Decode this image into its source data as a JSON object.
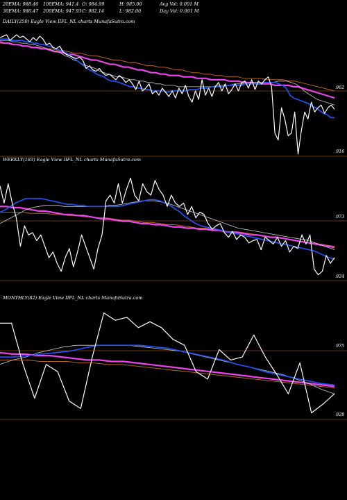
{
  "header": {
    "row1": [
      {
        "key": "ema20",
        "text": "20EMA: 988.46"
      },
      {
        "key": "ema100",
        "text": "100EMA: 941.4"
      },
      {
        "key": "open",
        "text": "O: 984.99"
      },
      {
        "key": "high",
        "text": "H: 985.00"
      },
      {
        "key": "avgvol",
        "text": "Avg Vol: 0.001 M"
      }
    ],
    "row2": [
      {
        "key": "ema30",
        "text": "30EMA: 986.47"
      },
      {
        "key": "ema200",
        "text": "200EMA: 947.93"
      },
      {
        "key": "close",
        "text": "C: 982.14"
      },
      {
        "key": "low",
        "text": "L: 982.00"
      },
      {
        "key": "dayvol",
        "text": "Day Vol: 0.001 M"
      }
    ]
  },
  "colors": {
    "background": "#000000",
    "price": "#ffffff",
    "ema_fast": "#2255ff",
    "ema_slow": "#ee44ee",
    "ema_brown": "#b5651d",
    "ema_white": "#cccccc",
    "guide": "#8b4513"
  },
  "chart_data": [
    {
      "type": "line",
      "title": "DAILY(250) Eagle  View  IIFL_NL  charts MunafaSutra.com",
      "price_labels": [
        "962",
        "916"
      ],
      "ylim": [
        900,
        995
      ],
      "series": [
        {
          "role": "price",
          "values": [
            988,
            989,
            990,
            986,
            988,
            990,
            988,
            989,
            987,
            985,
            988,
            986,
            989,
            987,
            983,
            984,
            981,
            980,
            982,
            978,
            976,
            975,
            974,
            973,
            974,
            972,
            966,
            968,
            965,
            964,
            966,
            963,
            961,
            962,
            960,
            958,
            961,
            959,
            956,
            958,
            955,
            951,
            957,
            950,
            952,
            955,
            948,
            950,
            947,
            952,
            949,
            946,
            950,
            945,
            952,
            948,
            954,
            946,
            942,
            950,
            944,
            958,
            947,
            952,
            946,
            953,
            956,
            950,
            955,
            948,
            951,
            955,
            950,
            956,
            957,
            952,
            958,
            951,
            957,
            955,
            958,
            960,
            953,
            920,
            915,
            938,
            930,
            918,
            920,
            935,
            905,
            922,
            935,
            930,
            942,
            935,
            938,
            940,
            934,
            938,
            940,
            937
          ]
        },
        {
          "role": "ema_fast",
          "values": [
            987,
            987,
            987,
            986,
            986,
            986,
            986,
            985,
            985,
            984,
            984,
            983,
            983,
            982,
            981,
            980,
            979,
            978,
            977,
            975,
            973,
            971,
            969,
            967,
            965,
            964,
            962,
            961,
            960,
            958,
            957,
            957,
            956,
            955,
            954,
            953,
            953,
            952,
            952,
            951,
            951,
            950,
            950,
            950,
            950,
            949,
            950,
            950,
            950,
            950,
            950,
            951,
            951,
            951,
            952,
            952,
            952,
            953,
            953,
            953,
            953,
            954,
            954,
            954,
            954,
            954,
            955,
            955,
            955,
            955,
            955,
            956,
            956,
            956,
            956,
            955,
            954,
            952,
            947,
            945,
            944,
            943,
            942,
            941,
            939,
            938,
            936,
            934,
            933,
            931,
            931
          ]
        },
        {
          "role": "ema_slow",
          "values": [
            985,
            984,
            984,
            983,
            983,
            982,
            982,
            981,
            981,
            980,
            980,
            979,
            978,
            978,
            977,
            976,
            976,
            975,
            974,
            973,
            972,
            972,
            971,
            970,
            969,
            969,
            968,
            967,
            967,
            966,
            965,
            965,
            964,
            963,
            963,
            962,
            962,
            961,
            961,
            961,
            960,
            960,
            960,
            959,
            959,
            959,
            958,
            958,
            958,
            958,
            957,
            957,
            957,
            956,
            956,
            956,
            955,
            955,
            955,
            955,
            954,
            954,
            954,
            954,
            953,
            953,
            952,
            951,
            950,
            949,
            948,
            947,
            946,
            945
          ]
        },
        {
          "role": "ema_brown",
          "values": [
            984,
            984,
            983,
            983,
            982,
            982,
            981,
            981,
            980,
            980,
            979,
            979,
            978,
            977,
            977,
            976,
            975,
            975,
            974,
            973,
            972,
            972,
            971,
            970,
            970,
            969,
            968,
            968,
            967,
            967,
            966,
            965,
            965,
            964,
            963,
            963,
            962,
            962,
            961,
            961,
            960,
            960,
            960,
            959,
            959,
            959,
            959,
            958,
            958,
            958,
            958,
            957,
            957,
            956,
            955,
            954,
            953,
            952,
            951,
            950
          ]
        },
        {
          "role": "ema_white",
          "values": [
            986,
            986,
            986,
            985,
            985,
            984,
            984,
            983,
            983,
            982,
            981,
            980,
            979,
            978,
            977,
            975,
            974,
            972,
            971,
            969,
            968,
            967,
            966,
            964,
            963,
            962,
            961,
            960,
            960,
            959,
            958,
            958,
            957,
            957,
            956,
            956,
            955,
            955,
            954,
            954,
            954,
            953,
            953,
            953,
            953,
            953,
            953,
            953,
            953,
            953,
            954,
            954,
            954,
            954,
            955,
            955,
            955,
            955,
            956,
            956,
            956,
            956,
            956,
            956,
            957,
            957,
            957,
            956,
            955,
            953,
            950,
            948,
            946,
            944,
            943,
            942,
            941,
            940
          ]
        }
      ]
    },
    {
      "type": "line",
      "title": "WEEKLY(183) Eagle  View  IIFL_NL  charts MunafaSutra.com",
      "price_labels": [
        "973",
        "924"
      ],
      "ylim": [
        905,
        1010
      ],
      "series": [
        {
          "role": "price",
          "values": [
            993,
            978,
            995,
            978,
            965,
            940,
            958,
            950,
            952,
            945,
            950,
            940,
            930,
            935,
            925,
            918,
            930,
            938,
            922,
            935,
            950,
            940,
            930,
            920,
            938,
            950,
            980,
            985,
            978,
            995,
            978,
            990,
            1000,
            985,
            980,
            995,
            988,
            985,
            998,
            990,
            985,
            975,
            985,
            978,
            975,
            978,
            968,
            975,
            965,
            970,
            968,
            960,
            955,
            958,
            960,
            952,
            948,
            953,
            946,
            950,
            948,
            943,
            945,
            946,
            937,
            948,
            945,
            942,
            948,
            940,
            945,
            935,
            940,
            938,
            950,
            942,
            950,
            920,
            915,
            918,
            932,
            925,
            930
          ]
        },
        {
          "role": "ema_fast",
          "values": [
            970,
            972,
            975,
            978,
            980,
            982,
            982,
            982,
            982,
            981,
            980,
            979,
            978,
            977,
            977,
            976,
            976,
            975,
            975,
            975,
            975,
            975,
            975,
            975,
            976,
            977,
            978,
            979,
            980,
            981,
            981,
            980,
            978,
            976,
            973,
            970,
            966,
            963,
            960,
            958,
            957,
            956,
            955,
            954,
            953,
            952,
            951,
            950,
            949,
            948,
            947,
            946,
            945,
            944,
            943,
            942,
            941,
            940,
            939,
            938,
            937,
            936,
            934,
            932,
            930,
            929
          ]
        },
        {
          "role": "ema_slow",
          "values": [
            975,
            975,
            974,
            974,
            973,
            972,
            971,
            971,
            970,
            969,
            968,
            968,
            967,
            967,
            966,
            965,
            964,
            964,
            963,
            962,
            962,
            961,
            960,
            960,
            959,
            959,
            958,
            957,
            957,
            956,
            956,
            955,
            955,
            954,
            954,
            953,
            952,
            952,
            951,
            950,
            950,
            949,
            948,
            948,
            947,
            946,
            945,
            944,
            943,
            942,
            941,
            940,
            939
          ]
        },
        {
          "role": "ema_brown",
          "values": [
            970,
            970,
            970,
            970,
            969,
            969,
            969,
            968,
            968,
            967,
            967,
            966,
            966,
            965,
            965,
            964,
            963,
            963,
            962,
            961,
            961,
            960,
            959,
            959,
            958,
            957,
            956,
            956,
            955,
            954,
            953,
            953,
            952,
            951,
            950,
            949,
            948,
            947,
            946,
            945,
            944,
            943,
            942,
            941,
            940
          ]
        },
        {
          "role": "ema_white",
          "values": [
            960,
            963,
            966,
            969,
            972,
            974,
            975,
            976,
            976,
            976,
            975,
            975,
            975,
            975,
            975,
            975,
            975,
            976,
            976,
            977,
            978,
            979,
            980,
            980,
            980,
            979,
            978,
            976,
            974,
            972,
            970,
            968,
            966,
            964,
            962,
            960,
            958,
            956,
            955,
            954,
            953,
            952,
            951,
            950,
            949,
            948,
            947,
            946,
            945,
            943,
            941,
            939,
            937
          ]
        }
      ]
    },
    {
      "type": "line",
      "title": "MONTHLY(82) Eagle  View  IIFL_NL  charts MunafaSutra.com",
      "price_labels": [
        "975",
        "928"
      ],
      "ylim": [
        910,
        995
      ],
      "series": [
        {
          "role": "price",
          "values": [
            983,
            983,
            955,
            932,
            955,
            950,
            930,
            925,
            960,
            990,
            985,
            987,
            980,
            984,
            980,
            972,
            968,
            950,
            945,
            965,
            958,
            960,
            975,
            960,
            948,
            935,
            956,
            922,
            928,
            935
          ]
        },
        {
          "role": "ema_fast",
          "values": [
            960,
            960,
            961,
            962,
            963,
            964,
            966,
            968,
            968,
            968,
            968,
            967,
            966,
            964,
            962,
            960,
            958,
            955,
            953,
            950,
            948,
            946,
            944,
            942,
            941
          ]
        },
        {
          "role": "ema_slow",
          "values": [
            963,
            962,
            962,
            961,
            961,
            960,
            959,
            958,
            958,
            957,
            957,
            956,
            955,
            954,
            953,
            952,
            951,
            950,
            949,
            948,
            947,
            946,
            945,
            944,
            943,
            942,
            941,
            940
          ]
        },
        {
          "role": "ema_brown",
          "values": [
            958,
            958,
            958,
            957,
            957,
            957,
            956,
            956,
            955,
            955,
            954,
            953,
            952,
            951,
            950,
            949,
            948,
            947,
            946,
            945,
            944,
            943,
            942,
            941,
            940,
            939
          ]
        },
        {
          "role": "ema_white",
          "values": [
            955,
            958,
            960,
            963,
            965,
            967,
            968,
            968,
            968,
            968,
            968,
            967,
            966,
            965,
            964,
            962,
            960,
            958,
            956,
            954,
            952,
            950,
            948,
            945,
            942,
            938,
            935
          ]
        }
      ]
    }
  ]
}
